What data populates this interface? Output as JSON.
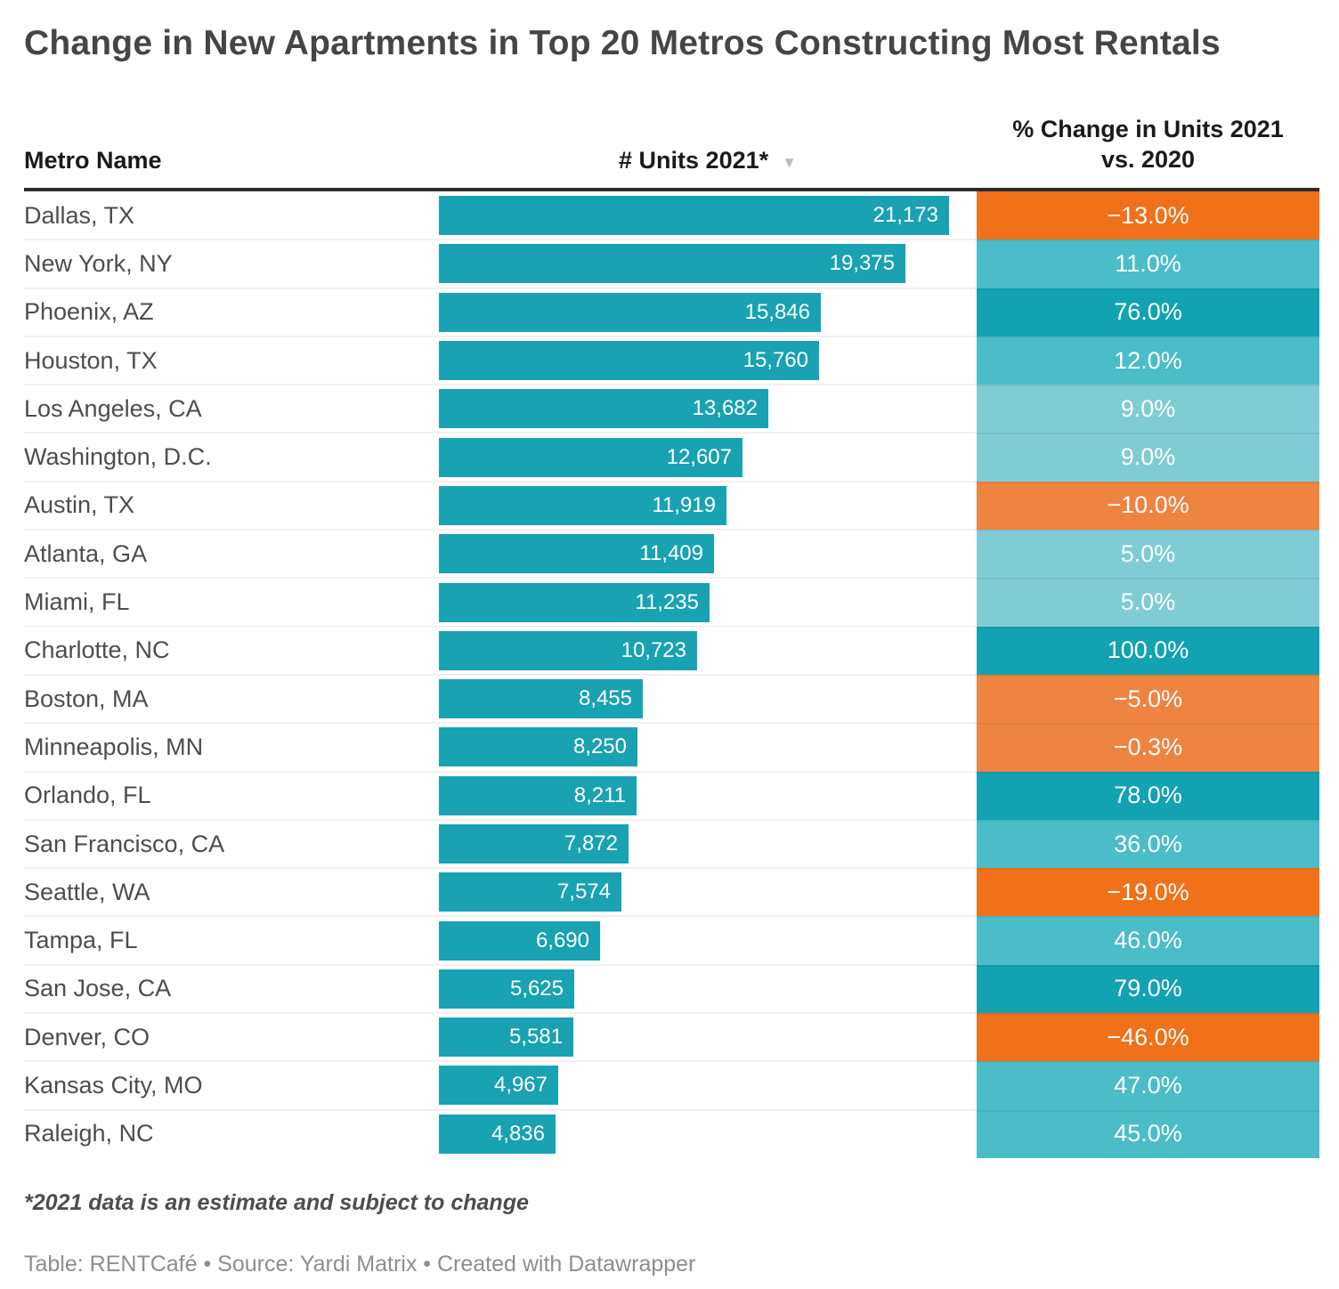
{
  "title": "Change in New Apartments in Top 20 Metros Constructing Most Rentals",
  "columns": {
    "metro": "Metro Name",
    "units": "# Units 2021*",
    "sort_icon": "▼",
    "pct_line1": "% Change in Units 2021",
    "pct_line2": "vs. 2020"
  },
  "colors": {
    "bar": "#18a2b2",
    "teal_dark": "#12a2b2",
    "teal_mid": "#4abdc8",
    "teal_light": "#7fccd5",
    "orange_dark": "#f1701a",
    "orange_light": "#ef8440"
  },
  "rows": [
    {
      "metro": "Dallas, TX",
      "units": "21,173",
      "units_value": 21173,
      "pct": "−13.0%",
      "tier": "orange_dark"
    },
    {
      "metro": "New York, NY",
      "units": "19,375",
      "units_value": 19375,
      "pct": "11.0%",
      "tier": "teal_mid"
    },
    {
      "metro": "Phoenix, AZ",
      "units": "15,846",
      "units_value": 15846,
      "pct": "76.0%",
      "tier": "teal_dark"
    },
    {
      "metro": "Houston, TX",
      "units": "15,760",
      "units_value": 15760,
      "pct": "12.0%",
      "tier": "teal_mid"
    },
    {
      "metro": "Los Angeles, CA",
      "units": "13,682",
      "units_value": 13682,
      "pct": "9.0%",
      "tier": "teal_light"
    },
    {
      "metro": "Washington, D.C.",
      "units": "12,607",
      "units_value": 12607,
      "pct": "9.0%",
      "tier": "teal_light"
    },
    {
      "metro": "Austin, TX",
      "units": "11,919",
      "units_value": 11919,
      "pct": "−10.0%",
      "tier": "orange_light"
    },
    {
      "metro": "Atlanta, GA",
      "units": "11,409",
      "units_value": 11409,
      "pct": "5.0%",
      "tier": "teal_light"
    },
    {
      "metro": "Miami, FL",
      "units": "11,235",
      "units_value": 11235,
      "pct": "5.0%",
      "tier": "teal_light"
    },
    {
      "metro": "Charlotte, NC",
      "units": "10,723",
      "units_value": 10723,
      "pct": "100.0%",
      "tier": "teal_dark"
    },
    {
      "metro": "Boston, MA",
      "units": "8,455",
      "units_value": 8455,
      "pct": "−5.0%",
      "tier": "orange_light"
    },
    {
      "metro": "Minneapolis, MN",
      "units": "8,250",
      "units_value": 8250,
      "pct": "−0.3%",
      "tier": "orange_light"
    },
    {
      "metro": "Orlando, FL",
      "units": "8,211",
      "units_value": 8211,
      "pct": "78.0%",
      "tier": "teal_dark"
    },
    {
      "metro": "San Francisco, CA",
      "units": "7,872",
      "units_value": 7872,
      "pct": "36.0%",
      "tier": "teal_mid"
    },
    {
      "metro": "Seattle, WA",
      "units": "7,574",
      "units_value": 7574,
      "pct": "−19.0%",
      "tier": "orange_dark"
    },
    {
      "metro": "Tampa, FL",
      "units": "6,690",
      "units_value": 6690,
      "pct": "46.0%",
      "tier": "teal_mid"
    },
    {
      "metro": "San Jose, CA",
      "units": "5,625",
      "units_value": 5625,
      "pct": "79.0%",
      "tier": "teal_dark"
    },
    {
      "metro": "Denver, CO",
      "units": "5,581",
      "units_value": 5581,
      "pct": "−46.0%",
      "tier": "orange_dark"
    },
    {
      "metro": "Kansas City, MO",
      "units": "4,967",
      "units_value": 4967,
      "pct": "47.0%",
      "tier": "teal_mid"
    },
    {
      "metro": "Raleigh, NC",
      "units": "4,836",
      "units_value": 4836,
      "pct": "45.0%",
      "tier": "teal_mid"
    }
  ],
  "footnote": "*2021 data is an estimate and subject to change",
  "attribution": "Table: RENTCafé • Source: Yardi Matrix • Created with Datawrapper",
  "chart_data": {
    "type": "table",
    "title": "Change in New Apartments in Top 20 Metros Constructing Most Rentals",
    "columns": [
      "Metro Name",
      "# Units 2021*",
      "% Change in Units 2021 vs. 2020"
    ],
    "rows": [
      [
        "Dallas, TX",
        21173,
        -13.0
      ],
      [
        "New York, NY",
        19375,
        11.0
      ],
      [
        "Phoenix, AZ",
        15846,
        76.0
      ],
      [
        "Houston, TX",
        15760,
        12.0
      ],
      [
        "Los Angeles, CA",
        13682,
        9.0
      ],
      [
        "Washington, D.C.",
        12607,
        9.0
      ],
      [
        "Austin, TX",
        11919,
        -10.0
      ],
      [
        "Atlanta, GA",
        11409,
        5.0
      ],
      [
        "Miami, FL",
        11235,
        5.0
      ],
      [
        "Charlotte, NC",
        10723,
        100.0
      ],
      [
        "Boston, MA",
        8455,
        -5.0
      ],
      [
        "Minneapolis, MN",
        8250,
        -0.3
      ],
      [
        "Orlando, FL",
        8211,
        78.0
      ],
      [
        "San Francisco, CA",
        7872,
        36.0
      ],
      [
        "Seattle, WA",
        7574,
        -19.0
      ],
      [
        "Tampa, FL",
        6690,
        46.0
      ],
      [
        "San Jose, CA",
        5625,
        79.0
      ],
      [
        "Denver, CO",
        5581,
        -46.0
      ],
      [
        "Kansas City, MO",
        4967,
        47.0
      ],
      [
        "Raleigh, NC",
        4836,
        45.0
      ]
    ],
    "layout_hints": {
      "units_rendered_as": "horizontal bars scaled to max 21173",
      "pct_rendered_as": "heatmap cells: orange = negative, teal = positive, darker = larger magnitude",
      "sort": "# Units 2021* descending"
    },
    "notes": "*2021 data is an estimate and subject to change"
  }
}
